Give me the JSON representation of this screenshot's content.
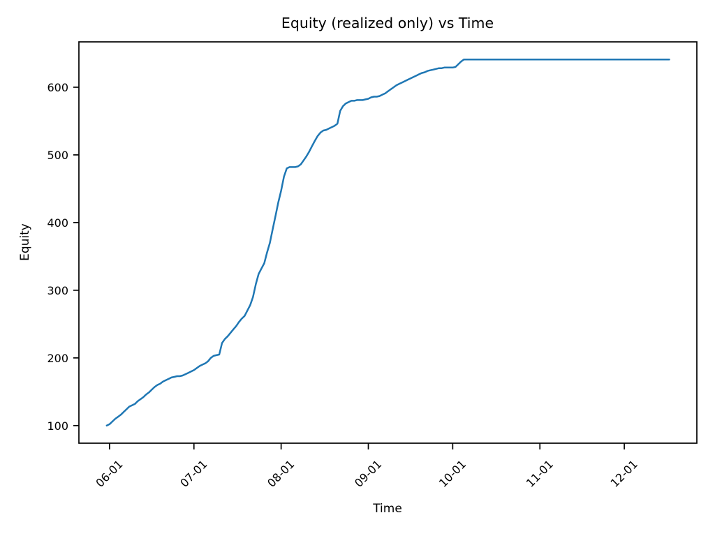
{
  "chart_data": {
    "type": "line",
    "title": "Equity (realized only) vs Time",
    "xlabel": "Time",
    "ylabel": "Equity",
    "grid": false,
    "legend": null,
    "line_color": "#1f77b4",
    "axis_color": "#000000",
    "background_color": "#ffffff",
    "x_tick_labels": [
      "06-01",
      "07-01",
      "08-01",
      "09-01",
      "10-01",
      "11-01",
      "12-01"
    ],
    "x_tick_rotation_deg": 45,
    "y_tick_values": [
      100,
      200,
      300,
      400,
      500,
      600
    ],
    "ylim": [
      74,
      667
    ],
    "xlim_days_from_jun1": [
      -10.9,
      208.8
    ],
    "series": [
      {
        "name": "Equity (realized only)",
        "x": [
          "05-31",
          "06-01",
          "06-02",
          "06-03",
          "06-04",
          "06-05",
          "06-06",
          "06-07",
          "06-08",
          "06-09",
          "06-10",
          "06-11",
          "06-12",
          "06-13",
          "06-14",
          "06-15",
          "06-16",
          "06-17",
          "06-18",
          "06-19",
          "06-20",
          "06-21",
          "06-22",
          "06-23",
          "06-24",
          "06-25",
          "06-26",
          "06-27",
          "06-28",
          "06-29",
          "06-30",
          "07-01",
          "07-02",
          "07-03",
          "07-04",
          "07-05",
          "07-06",
          "07-07",
          "07-08",
          "07-09",
          "07-10",
          "07-11",
          "07-12",
          "07-13",
          "07-14",
          "07-15",
          "07-16",
          "07-17",
          "07-18",
          "07-19",
          "07-20",
          "07-21",
          "07-22",
          "07-23",
          "07-24",
          "07-25",
          "07-26",
          "07-27",
          "07-28",
          "07-29",
          "07-30",
          "07-31",
          "08-01",
          "08-02",
          "08-03",
          "08-04",
          "08-05",
          "08-06",
          "08-07",
          "08-08",
          "08-09",
          "08-10",
          "08-11",
          "08-12",
          "08-13",
          "08-14",
          "08-15",
          "08-16",
          "08-17",
          "08-18",
          "08-19",
          "08-20",
          "08-21",
          "08-22",
          "08-23",
          "08-24",
          "08-25",
          "08-26",
          "08-27",
          "08-28",
          "08-29",
          "08-30",
          "08-31",
          "09-01",
          "09-02",
          "09-03",
          "09-04",
          "09-05",
          "09-06",
          "09-07",
          "09-08",
          "09-09",
          "09-10",
          "09-11",
          "09-12",
          "09-13",
          "09-14",
          "09-15",
          "09-16",
          "09-17",
          "09-18",
          "09-19",
          "09-20",
          "09-21",
          "09-22",
          "09-23",
          "09-24",
          "09-25",
          "09-26",
          "09-27",
          "09-28",
          "09-29",
          "09-30",
          "10-01",
          "10-02",
          "10-03",
          "10-04",
          "10-05",
          "10-06",
          "10-08",
          "10-15",
          "11-01",
          "11-15",
          "12-01",
          "12-17"
        ],
        "y": [
          100,
          102,
          106,
          110,
          113,
          116,
          120,
          124,
          128,
          130,
          132,
          136,
          139,
          142,
          146,
          149,
          153,
          157,
          160,
          162,
          165,
          167,
          169,
          171,
          172,
          173,
          173,
          174,
          176,
          178,
          180,
          182,
          185,
          188,
          190,
          192,
          195,
          200,
          203,
          204,
          205,
          222,
          228,
          232,
          237,
          242,
          247,
          253,
          258,
          262,
          270,
          278,
          290,
          309,
          324,
          332,
          340,
          356,
          370,
          390,
          410,
          430,
          447,
          468,
          480,
          482,
          482,
          482,
          483,
          486,
          492,
          498,
          505,
          513,
          521,
          528,
          533,
          536,
          537,
          539,
          541,
          543,
          546,
          565,
          572,
          576,
          578,
          580,
          580,
          581,
          581,
          581,
          582,
          583,
          585,
          586,
          586,
          587,
          589,
          591,
          594,
          597,
          600,
          603,
          605,
          607,
          609,
          611,
          613,
          615,
          617,
          619,
          621,
          622,
          624,
          625,
          626,
          627,
          628,
          628,
          629,
          629,
          629,
          629,
          630,
          634,
          638,
          641,
          641,
          641,
          641,
          641,
          641,
          641,
          641
        ]
      }
    ]
  }
}
